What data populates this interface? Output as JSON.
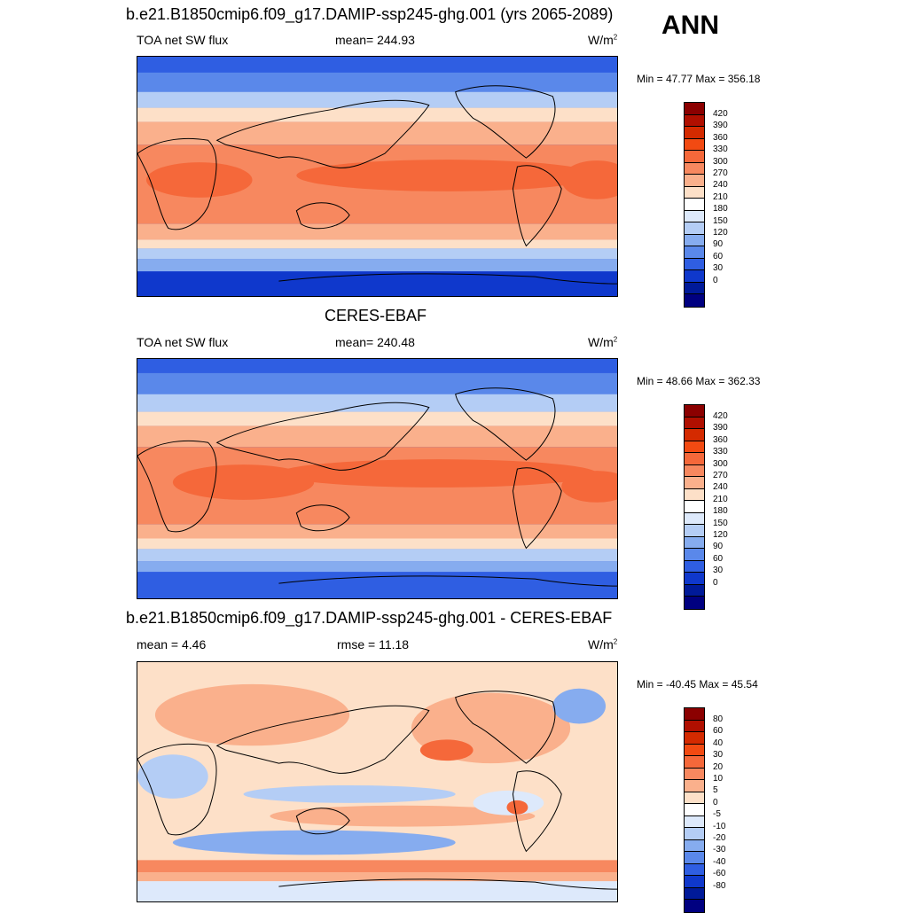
{
  "season": "ANN",
  "panels": [
    {
      "title": "b.e21.B1850cmip6.f09_g17.DAMIP-ssp245-ghg.001 (yrs 2065-2089)",
      "left_label": "TOA net SW flux",
      "center_label": "mean= 244.93",
      "units": "W/m",
      "units_sup": "2",
      "minmax": "Min =  47.77 Max = 356.18",
      "colorbar_labels": [
        "420",
        "390",
        "360",
        "330",
        "300",
        "270",
        "240",
        "210",
        "180",
        "150",
        "120",
        "90",
        "60",
        "30",
        "0"
      ]
    },
    {
      "title": "CERES-EBAF",
      "left_label": "TOA net SW flux",
      "center_label": "mean= 240.48",
      "units": "W/m",
      "units_sup": "2",
      "minmax": "Min =  48.66 Max = 362.33",
      "colorbar_labels": [
        "420",
        "390",
        "360",
        "330",
        "300",
        "270",
        "240",
        "210",
        "180",
        "150",
        "120",
        "90",
        "60",
        "30",
        "0"
      ]
    },
    {
      "title": "b.e21.B1850cmip6.f09_g17.DAMIP-ssp245-ghg.001 - CERES-EBAF",
      "left_label": "mean =   4.46",
      "center_label": "rmse =  11.18",
      "units": "W/m",
      "units_sup": "2",
      "minmax": "Min = -40.45 Max =  45.54",
      "colorbar_labels": [
        "80",
        "60",
        "40",
        "30",
        "20",
        "10",
        "5",
        "0",
        "-5",
        "-10",
        "-20",
        "-30",
        "-40",
        "-60",
        "-80"
      ]
    }
  ],
  "colors": {
    "abs_scale": [
      "#8b0000",
      "#b00f00",
      "#d42a00",
      "#f24a12",
      "#f5683a",
      "#f7885f",
      "#fab08c",
      "#fde0c8",
      "#ffffff",
      "#dde9fb",
      "#b4cdf5",
      "#86acef",
      "#5a88ea",
      "#2f5ee2",
      "#0f38cc",
      "#001a99",
      "#000080"
    ],
    "diff_scale": [
      "#8b0000",
      "#b00f00",
      "#d42a00",
      "#f24a12",
      "#f5683a",
      "#f7885f",
      "#fab08c",
      "#fde0c8",
      "#ffffff",
      "#dde9fb",
      "#b4cdf5",
      "#86acef",
      "#5a88ea",
      "#2f5ee2",
      "#0f38cc",
      "#001a99",
      "#000080"
    ]
  },
  "map_data": {
    "variable": "TOA net SW flux",
    "projection": "cylindrical-equidistant, centered on dateline",
    "abs_zonal_profile_w_m2": [
      {
        "lat": 90,
        "value": 60
      },
      {
        "lat": 75,
        "value": 110
      },
      {
        "lat": 60,
        "value": 150
      },
      {
        "lat": 45,
        "value": 220
      },
      {
        "lat": 30,
        "value": 290
      },
      {
        "lat": 15,
        "value": 330
      },
      {
        "lat": 0,
        "value": 320
      },
      {
        "lat": -15,
        "value": 335
      },
      {
        "lat": -30,
        "value": 300
      },
      {
        "lat": -45,
        "value": 220
      },
      {
        "lat": -60,
        "value": 150
      },
      {
        "lat": -75,
        "value": 80
      },
      {
        "lat": -90,
        "value": 40
      }
    ]
  }
}
